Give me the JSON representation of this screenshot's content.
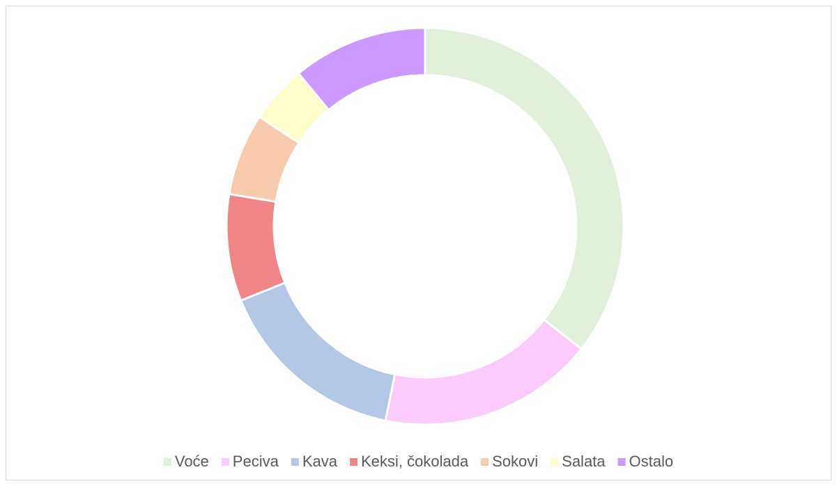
{
  "chart_data": {
    "type": "donut",
    "categories": [
      "Voće",
      "Peciva",
      "Kava",
      "Keksi, čokolada",
      "Sokovi",
      "Salata",
      "Ostalo"
    ],
    "values": [
      35.6,
      17.6,
      15.7,
      8.7,
      6.7,
      4.7,
      11.0
    ],
    "colors": [
      "#e2efda",
      "#fccbfc",
      "#b4c7e7",
      "#ef8587",
      "#f8cbad",
      "#ffffcc",
      "#cc99ff"
    ],
    "legend": "bottom"
  }
}
